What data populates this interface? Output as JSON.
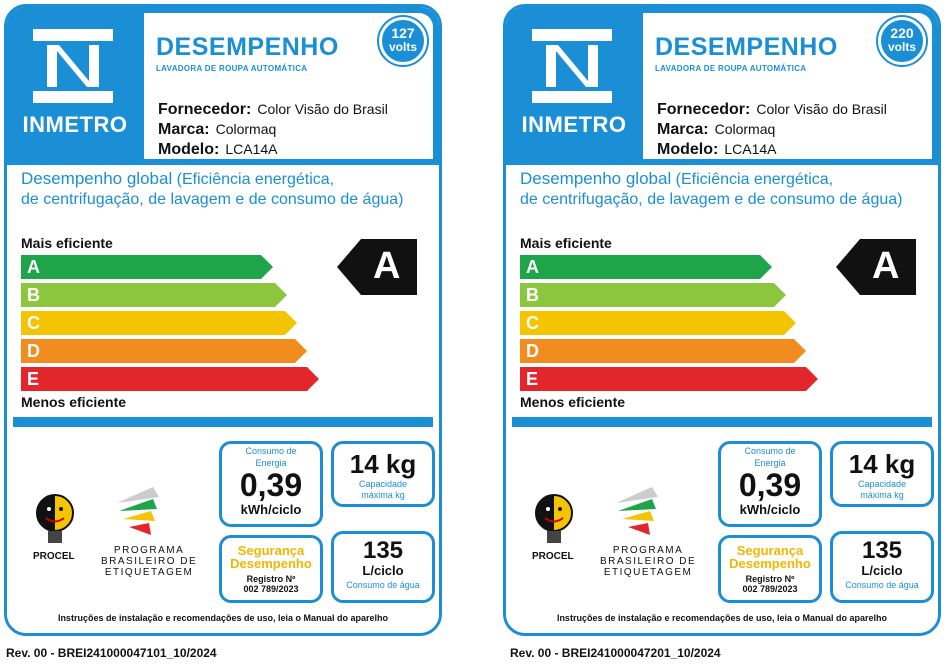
{
  "labels": [
    {
      "brand": "INMETRO",
      "title": "DESEMPENHO",
      "subtitle": "LAVADORA DE ROUPA AUTOMÁTICA",
      "voltage": {
        "number": "127",
        "unit": "volts"
      },
      "fornecedor": {
        "label": "Fornecedor:",
        "value": "Color Visão do Brasil"
      },
      "marca": {
        "label": "Marca:",
        "value": "Colormaq"
      },
      "modelo": {
        "label": "Modelo:",
        "value": "LCA14A"
      },
      "desempenho_title": "Desempenho global",
      "desempenho_desc_1": "(Eficiência energética,",
      "desempenho_desc_2": "de centrifugação, de lavagem e de consumo de água)",
      "mais": "Mais eficiente",
      "menos": "Menos eficiente",
      "classes": [
        "A",
        "B",
        "C",
        "D",
        "E"
      ],
      "rating": "A",
      "energia": {
        "title_1": "Consumo de",
        "title_2": "Energia",
        "value": "0,39",
        "unit": "kWh/ciclo"
      },
      "capacidade": {
        "value": "14 kg",
        "title_1": "Capacidade",
        "title_2": "máxima kg"
      },
      "seguranca": {
        "title_1": "Segurança",
        "title_2": "Desempenho",
        "reg_label": "Registro Nº",
        "reg_value": "002 789/2023"
      },
      "agua": {
        "value": "135",
        "unit": "L/ciclo",
        "title": "Consumo de água"
      },
      "procel": "PROCEL",
      "pbe": [
        "PROGRAMA",
        "BRASILEIRO DE",
        "ETIQUETAGEM"
      ],
      "instrucoes": "Instruções de instalação e recomendações de uso, leia o Manual do aparelho",
      "rev": "Rev. 00 - BREI241000047101_10/2024"
    },
    {
      "brand": "INMETRO",
      "title": "DESEMPENHO",
      "subtitle": "LAVADORA DE ROUPA AUTOMÁTICA",
      "voltage": {
        "number": "220",
        "unit": "volts"
      },
      "fornecedor": {
        "label": "Fornecedor:",
        "value": "Color Visão do Brasil"
      },
      "marca": {
        "label": "Marca:",
        "value": "Colormaq"
      },
      "modelo": {
        "label": "Modelo:",
        "value": "LCA14A"
      },
      "desempenho_title": "Desempenho global",
      "desempenho_desc_1": "(Eficiência energética,",
      "desempenho_desc_2": "de centrifugação, de lavagem e de consumo de água)",
      "mais": "Mais eficiente",
      "menos": "Menos eficiente",
      "classes": [
        "A",
        "B",
        "C",
        "D",
        "E"
      ],
      "rating": "A",
      "energia": {
        "title_1": "Consumo de",
        "title_2": "Energia",
        "value": "0,39",
        "unit": "kWh/ciclo"
      },
      "capacidade": {
        "value": "14 kg",
        "title_1": "Capacidade",
        "title_2": "máxima kg"
      },
      "seguranca": {
        "title_1": "Segurança",
        "title_2": "Desempenho",
        "reg_label": "Registro Nº",
        "reg_value": "002 789/2023"
      },
      "agua": {
        "value": "135",
        "unit": "L/ciclo",
        "title": "Consumo de água"
      },
      "procel": "PROCEL",
      "pbe": [
        "PROGRAMA",
        "BRASILEIRO DE",
        "ETIQUETAGEM"
      ],
      "instrucoes": "Instruções de instalação e recomendações de uso, leia o Manual do aparelho",
      "rev": "Rev. 00 - BREI241000047201_10/2024"
    }
  ],
  "colors": {
    "brand_blue": "#1a8fd6",
    "A": "#1ea54a",
    "B": "#8cc63f",
    "C": "#f5c400",
    "D": "#f28c1e",
    "E": "#e3262b",
    "seguranca": "#f2b600"
  }
}
